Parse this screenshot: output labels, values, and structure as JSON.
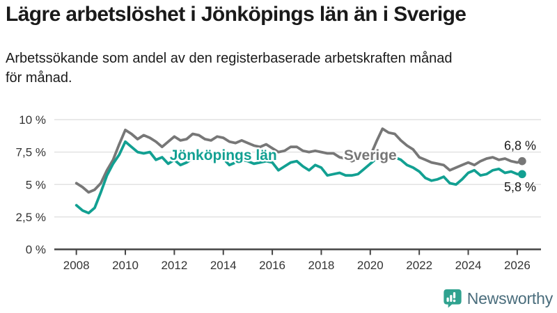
{
  "header": {
    "title": "Lägre arbetslöshet i Jönköpings län än i Sverige",
    "subtitle": "Arbetssökande som andel av den registerbaserade arbetskraften månad\nför månad."
  },
  "chart_data": {
    "type": "line",
    "title": "Lägre arbetslöshet i Jönköpings län än i Sverige",
    "xlabel": "",
    "ylabel": "",
    "unit": "%",
    "grid": true,
    "legend_position": "inline-labels",
    "xlim": [
      2007.1,
      2026.97
    ],
    "ylim": [
      0,
      10.35
    ],
    "xticks": [
      {
        "value": 2008,
        "label": "2008"
      },
      {
        "value": 2010,
        "label": "2010"
      },
      {
        "value": 2012,
        "label": "2012"
      },
      {
        "value": 2014,
        "label": "2014"
      },
      {
        "value": 2016,
        "label": "2016"
      },
      {
        "value": 2018,
        "label": "2018"
      },
      {
        "value": 2020,
        "label": "2020"
      },
      {
        "value": 2022,
        "label": "2022"
      },
      {
        "value": 2024,
        "label": "2024"
      },
      {
        "value": 2026,
        "label": "2026"
      }
    ],
    "yticks": [
      {
        "value": 0,
        "label": "0 %"
      },
      {
        "value": 2.5,
        "label": "2,5 %"
      },
      {
        "value": 5,
        "label": "5 %"
      },
      {
        "value": 7.5,
        "label": "7,5 %"
      },
      {
        "value": 10,
        "label": "10 %"
      }
    ],
    "x": [
      2008,
      2008.25,
      2008.5,
      2008.75,
      2009,
      2009.25,
      2009.5,
      2009.75,
      2010,
      2010.25,
      2010.5,
      2010.75,
      2011,
      2011.25,
      2011.5,
      2011.75,
      2012,
      2012.25,
      2012.5,
      2012.75,
      2013,
      2013.25,
      2013.5,
      2013.75,
      2014,
      2014.25,
      2014.5,
      2014.75,
      2015,
      2015.25,
      2015.5,
      2015.75,
      2016,
      2016.25,
      2016.5,
      2016.75,
      2017,
      2017.25,
      2017.5,
      2017.75,
      2018,
      2018.25,
      2018.5,
      2018.75,
      2019,
      2019.25,
      2019.5,
      2019.75,
      2020,
      2020.25,
      2020.5,
      2020.75,
      2021,
      2021.25,
      2021.5,
      2021.75,
      2022,
      2022.25,
      2022.5,
      2022.75,
      2023,
      2023.25,
      2023.5,
      2023.75,
      2024,
      2024.25,
      2024.5,
      2024.75,
      2025,
      2025.25,
      2025.5,
      2025.75,
      2026,
      2026.2
    ],
    "series": [
      {
        "name": "Sverige",
        "color": "#777777",
        "label_anchor": {
          "x": 2020.0,
          "y": 7.3
        },
        "end_label": "6,8 %",
        "values": [
          5.1,
          4.8,
          4.4,
          4.6,
          5.1,
          6.1,
          6.9,
          8.1,
          9.2,
          8.9,
          8.5,
          8.8,
          8.6,
          8.3,
          7.9,
          8.3,
          8.7,
          8.4,
          8.5,
          8.9,
          8.8,
          8.5,
          8.4,
          8.7,
          8.6,
          8.3,
          8.2,
          8.4,
          8.2,
          8.0,
          7.9,
          8.1,
          7.8,
          7.5,
          7.6,
          7.9,
          7.9,
          7.6,
          7.5,
          7.6,
          7.5,
          7.4,
          7.4,
          7.1,
          7.0,
          6.8,
          7.0,
          7.1,
          7.2,
          8.3,
          9.3,
          9.0,
          8.9,
          8.4,
          8.0,
          7.7,
          7.1,
          6.9,
          6.7,
          6.6,
          6.5,
          6.1,
          6.3,
          6.5,
          6.7,
          6.5,
          6.8,
          7.0,
          7.1,
          6.9,
          7.0,
          6.8,
          6.7,
          6.8
        ]
      },
      {
        "name": "Jönköpings län",
        "color": "#12a092",
        "label_anchor": {
          "x": 2014.0,
          "y": 7.3
        },
        "end_label": "5,8 %",
        "values": [
          3.4,
          3.0,
          2.8,
          3.2,
          4.4,
          5.7,
          6.6,
          7.3,
          8.3,
          7.9,
          7.5,
          7.4,
          7.5,
          6.9,
          7.1,
          6.6,
          6.9,
          6.5,
          6.7,
          7.0,
          7.3,
          7.0,
          6.9,
          7.1,
          7.0,
          6.5,
          6.7,
          6.9,
          6.8,
          6.6,
          6.7,
          6.8,
          6.7,
          6.1,
          6.4,
          6.7,
          6.8,
          6.4,
          6.1,
          6.5,
          6.3,
          5.7,
          5.8,
          5.9,
          5.7,
          5.7,
          5.8,
          6.2,
          6.6,
          7.0,
          7.3,
          7.2,
          7.1,
          6.9,
          6.5,
          6.3,
          6.0,
          5.5,
          5.3,
          5.4,
          5.6,
          5.1,
          5.0,
          5.4,
          5.9,
          6.1,
          5.7,
          5.8,
          6.1,
          6.2,
          5.9,
          6.0,
          5.8,
          5.8
        ]
      }
    ]
  },
  "footer": {
    "brand": "Newsworthy",
    "logo_icon": "newsworthy-pin-barchart-icon"
  },
  "colors": {
    "background": "#ffffff",
    "title_text": "#1a1a1a",
    "axis_text": "#333333",
    "axis_line": "#444444",
    "gridline": "#e2e2e2",
    "sverige_line": "#777777",
    "jonkoping_line": "#12a092",
    "brand_teal": "#2fa28f",
    "brand_text": "#4a6d7c"
  }
}
